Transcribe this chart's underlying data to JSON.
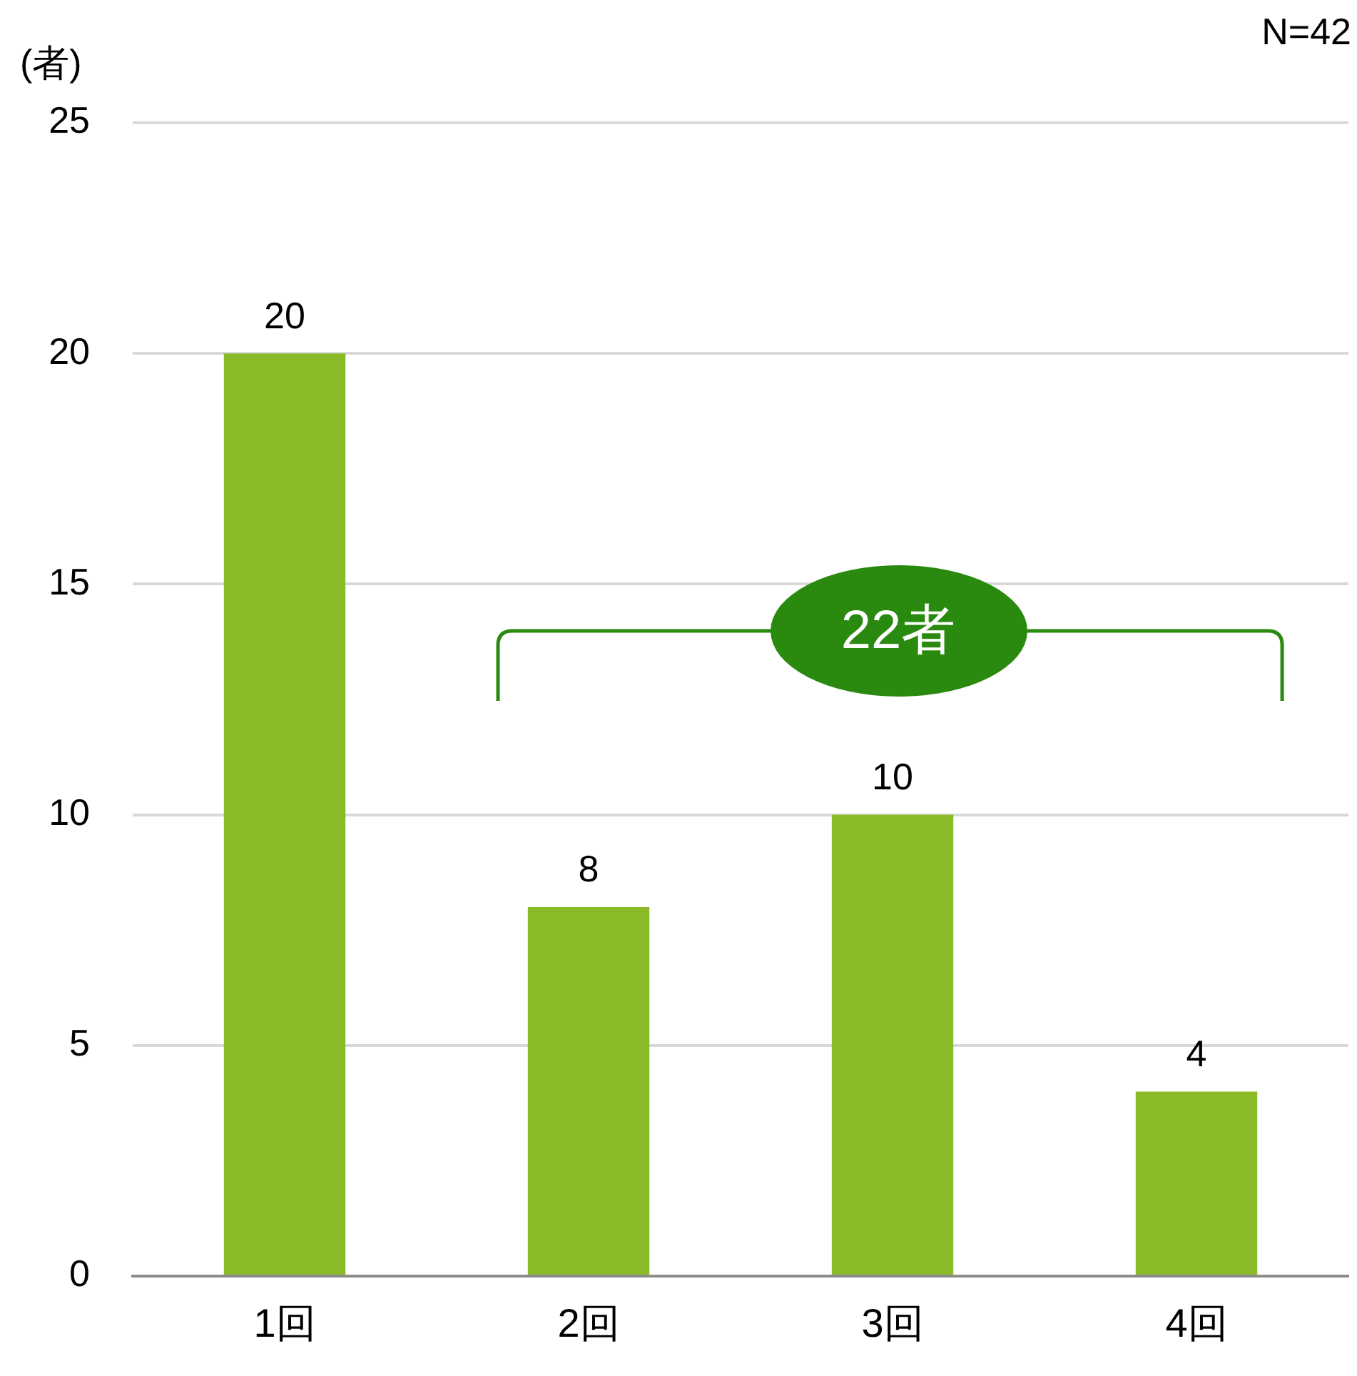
{
  "chart_data": {
    "type": "bar",
    "ylabel": "(者)",
    "categories": [
      "1回",
      "2回",
      "3回",
      "4回"
    ],
    "values": [
      20,
      8,
      10,
      4
    ],
    "color": "#8aba28",
    "ylim": [
      0,
      25
    ],
    "yticks": [
      0,
      5,
      10,
      15,
      20,
      25
    ],
    "grid": "y",
    "data_labels": true,
    "annotations": [
      "N=42",
      "22者"
    ]
  }
}
